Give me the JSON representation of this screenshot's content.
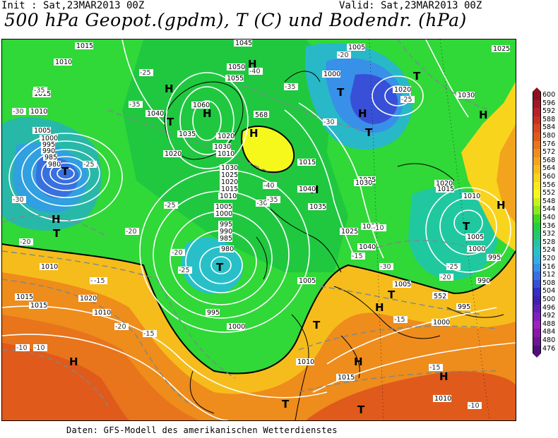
{
  "header": {
    "init_label": "Init : Sat,23MAR2013 00Z",
    "valid_label": "Valid: Sat,23MAR2013 00Z",
    "title": "500 hPa Geopot.(gpdm), T (C) und Bodendr. (hPa)"
  },
  "footer": {
    "source": "Daten: GFS-Modell des amerikanischen Wetterdienstes"
  },
  "legend": {
    "levels": [
      "600",
      "596",
      "592",
      "588",
      "584",
      "580",
      "576",
      "572",
      "568",
      "564",
      "560",
      "556",
      "552",
      "548",
      "544",
      "540",
      "536",
      "532",
      "528",
      "524",
      "520",
      "516",
      "512",
      "508",
      "504",
      "500",
      "496",
      "492",
      "488",
      "484",
      "480",
      "476"
    ],
    "colors": [
      "#8b1020",
      "#a01828",
      "#b8202c",
      "#c83024",
      "#d84820",
      "#e05a1c",
      "#e8741c",
      "#ee8c1c",
      "#f2a41c",
      "#f6bc1c",
      "#f8d41c",
      "#fae81c",
      "#f6f81c",
      "#c8f01c",
      "#8ae81c",
      "#40d820",
      "#20d040",
      "#20c870",
      "#20c4a0",
      "#28c0c8",
      "#30b0e0",
      "#3890e8",
      "#3870e0",
      "#3850d8",
      "#3030c8",
      "#4020b0",
      "#6020b8",
      "#8020c0",
      "#a020c0",
      "#8818a8",
      "#6c1890",
      "#50107a"
    ]
  },
  "map": {
    "high_symbol": "H",
    "low_symbol": "T",
    "isobars": [
      "1030",
      "1025",
      "1015",
      "1010",
      "1005",
      "1000",
      "995",
      "990",
      "985",
      "980",
      "1045",
      "1050",
      "1055",
      "1060",
      "1040",
      "1035",
      "1020",
      "1030",
      "1020",
      "1010",
      "1015",
      "1040",
      "1035",
      "1030",
      "1025",
      "1020",
      "1015",
      "1010",
      "1005",
      "1000",
      "995",
      "990",
      "985",
      "980",
      "995",
      "1000",
      "1005",
      "1010",
      "1015",
      "1020",
      "1025",
      "1030",
      "1035",
      "1040",
      "1025",
      "1020",
      "1015",
      "1010",
      "1005",
      "1000",
      "995",
      "990",
      "995",
      "1000",
      "1005",
      "1010",
      "1015",
      "1010",
      "1015",
      "1010",
      "1005",
      "1000",
      "1025",
      "1030",
      "1020",
      "1015",
      "1010"
    ],
    "temps": [
      "-25",
      "-35",
      "-30",
      "-40",
      "-35",
      "-20",
      "-15",
      "-10",
      "-20",
      "-25",
      "-35",
      "-30",
      "-25",
      "-20",
      "-15",
      "-10",
      "-30",
      "-40",
      "-35",
      "-25",
      "-20",
      "-15",
      "-30",
      "-25",
      "-20",
      "-15",
      "-10",
      "-30",
      "-25",
      "-20",
      "-15",
      "-10",
      "-15"
    ],
    "geo_marker": "568",
    "geo_marker2": "552"
  }
}
